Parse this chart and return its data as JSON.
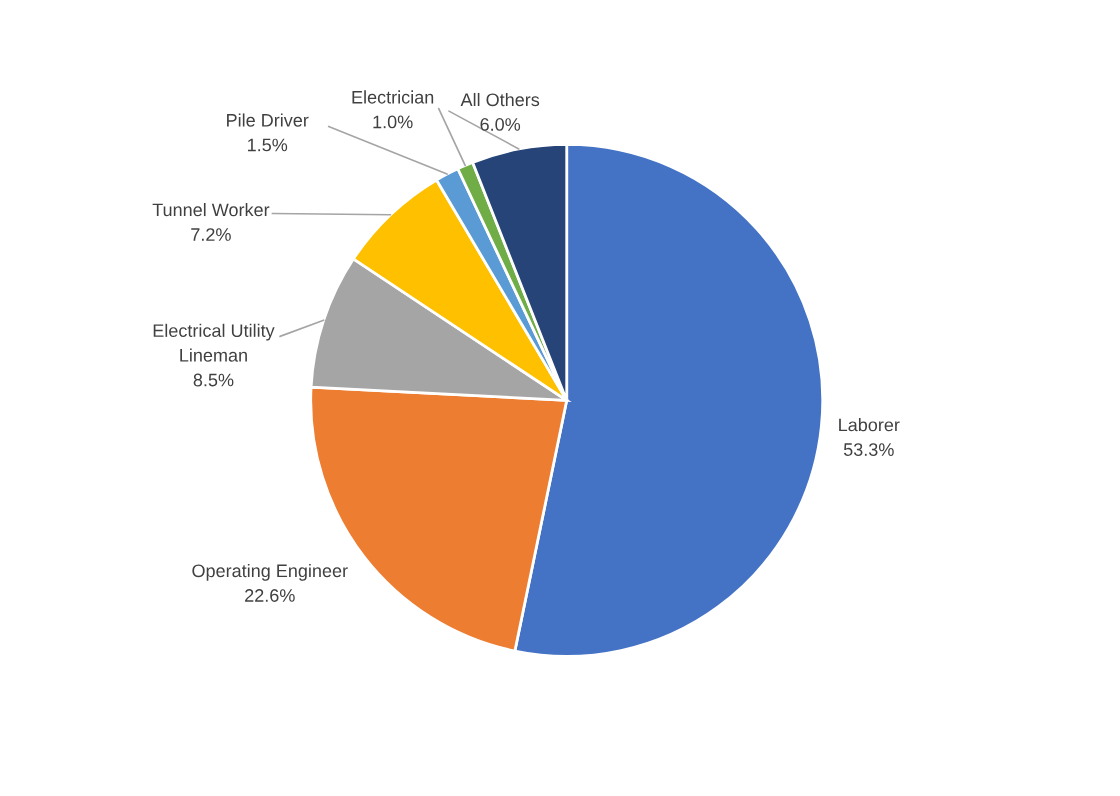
{
  "chart_data": {
    "type": "pie",
    "categories": [
      "Laborer",
      "Operating Engineer",
      "Electrical Utility\nLineman",
      "Tunnel Worker",
      "Pile Driver",
      "Electrician",
      "All Others"
    ],
    "values": [
      53.3,
      22.6,
      8.5,
      7.2,
      1.5,
      1.0,
      6.0
    ],
    "value_labels": [
      "53.3%",
      "22.6%",
      "8.5%",
      "7.2%",
      "1.5%",
      "1.0%",
      "6.0%"
    ],
    "colors": [
      "#4472c4",
      "#ed7d31",
      "#a5a5a5",
      "#ffc000",
      "#5b9bd5",
      "#70ad47",
      "#264478"
    ],
    "legend": false
  }
}
